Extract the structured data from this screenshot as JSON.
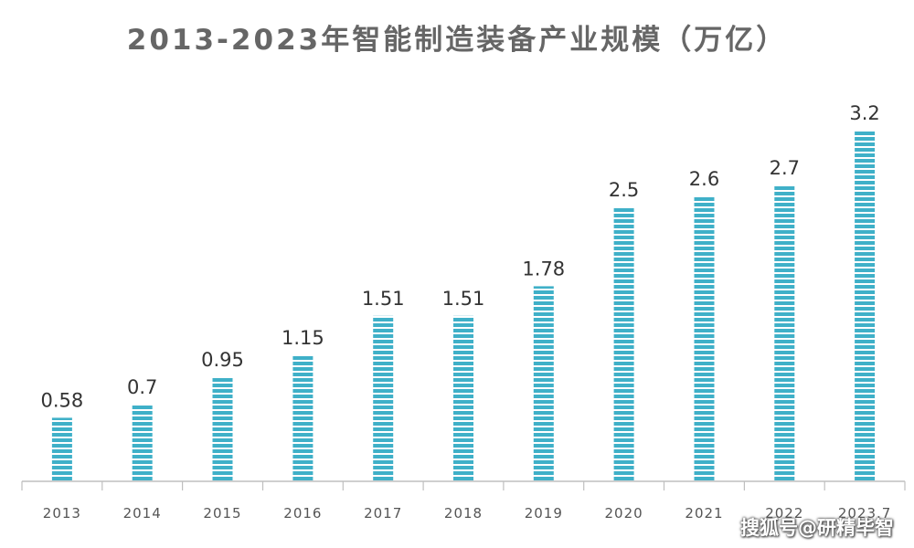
{
  "chart_data": {
    "type": "bar",
    "title": "2013-2023年智能制造装备产业规模（万亿）",
    "xlabel": "",
    "ylabel": "",
    "categories": [
      "2013",
      "2014",
      "2015",
      "2016",
      "2017",
      "2018",
      "2019",
      "2020",
      "2021",
      "2022",
      "2023.7"
    ],
    "values": [
      0.58,
      0.7,
      0.95,
      1.15,
      1.51,
      1.51,
      1.78,
      2.5,
      2.6,
      2.7,
      3.2
    ],
    "value_labels": [
      "0.58",
      "0.7",
      "0.95",
      "1.15",
      "1.51",
      "1.51",
      "1.78",
      "2.5",
      "2.6",
      "2.7",
      "3.2"
    ],
    "ylim": [
      0,
      3.2
    ],
    "grid": false,
    "legend": "none"
  },
  "colors": {
    "bar": "#3fb0c8",
    "bar_stripe": "#ffffff",
    "title": "#666666",
    "label": "#333333",
    "tick": "#555555",
    "axis": "#bfbfbf"
  },
  "watermark": "搜狐号@研精毕智"
}
